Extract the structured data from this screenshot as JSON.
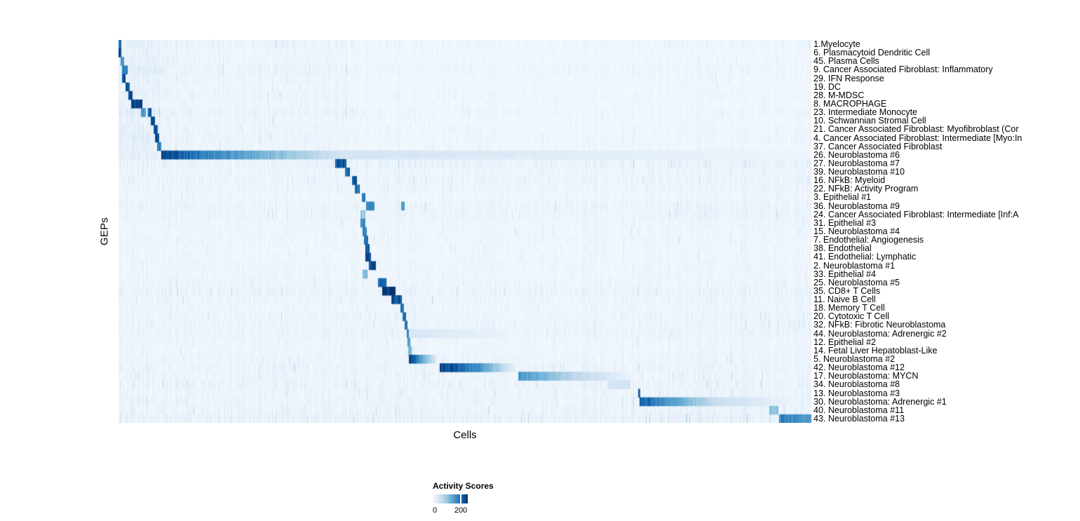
{
  "chart_data": {
    "type": "heatmap",
    "title": "",
    "xlabel": "Cells",
    "ylabel": "GEPs",
    "grid": false,
    "legend": {
      "title": "Activity Scores",
      "position": "bottom",
      "ticks": [
        {
          "label": "0",
          "frac": 0.0
        },
        {
          "label": "200",
          "frac": 0.8
        }
      ],
      "value_max": 250
    },
    "colors": {
      "low": "#f7fbff",
      "mid": "#6baed6",
      "high": "#08306b",
      "background": "#f3f8fc",
      "colormap": "Blues white-to-dark-navy"
    },
    "rows": [
      "1.Myelocyte",
      "6. Plasmacytoid Dendritic Cell",
      "45. Plasma Cells",
      "9. Cancer Associated Fibroblast: Inflammatory",
      "29. IFN Response",
      "19. DC",
      "28. M-MDSC",
      "8. MACROPHAGE",
      "23. Intermediate Monocyte",
      "10. Schwannian Stromal Cell",
      "21. Cancer Associated Fibroblast: Myofibroblast (Cor",
      "4. Cancer Associated Fibroblast: Intermediate [Myo:In",
      "37. Cancer Associated Fibroblast",
      "26. Neuroblastoma #6",
      "27. Neuroblastoma #7",
      "39. Neuroblastoma #10",
      "16. NFkB: Myeloid",
      "22. NFkB: Activity Program",
      "3. Epithelial #1",
      "36. Neuroblastoma #9",
      "24. Cancer Associated Fibroblast: Intermediate [Inf:A",
      "31. Epithelial #3",
      "15. Neuroblastoma #4",
      "7. Endothelial: Angiogenesis",
      "38. Endothelial",
      "41. Endothelial: Lymphatic",
      "2. Neuroblastoma #1",
      "33. Epithelial #4",
      "25. Neuroblastoma #5",
      "35. CD8+ T Cells",
      "11. Naive B Cell",
      "18. Memory T Cell",
      "20. Cytotoxic T Cell",
      "32. NFkB: Fibrotic Neuroblastoma",
      "44. Neuroblastoma: Adrenergic #2",
      "12. Epithelial #2",
      "14. Fetal Liver Hepatoblast-Like",
      "5. Neuroblastoma #2",
      "42. Neuroblastoma #12",
      "17. Neuroblastoma: MYCN",
      "34. Neuroblastoma #8",
      "13. Neuroblastoma #3",
      "30. Neuroblastoma: Adrenergic #1",
      "40. Neuroblastoma #11",
      "43. Neuroblastoma #13"
    ],
    "high_activity_blocks": [
      {
        "row": 0,
        "x0": 0.0,
        "x1": 0.004,
        "v0": 200,
        "v1": 200
      },
      {
        "row": 1,
        "x0": 0.0,
        "x1": 0.004,
        "v0": 235,
        "v1": 235
      },
      {
        "row": 2,
        "x0": 0.004,
        "x1": 0.008,
        "v0": 170,
        "v1": 170
      },
      {
        "row": 3,
        "x0": 0.006,
        "x1": 0.013,
        "v0": 185,
        "v1": 185
      },
      {
        "row": 4,
        "x0": 0.006,
        "x1": 0.01,
        "v0": 225,
        "v1": 225
      },
      {
        "row": 5,
        "x0": 0.011,
        "x1": 0.016,
        "v0": 220,
        "v1": 220
      },
      {
        "row": 6,
        "x0": 0.015,
        "x1": 0.02,
        "v0": 230,
        "v1": 230
      },
      {
        "row": 7,
        "x0": 0.019,
        "x1": 0.034,
        "v0": 245,
        "v1": 245
      },
      {
        "row": 8,
        "x0": 0.033,
        "x1": 0.039,
        "v0": 150,
        "v1": 150
      },
      {
        "row": 8,
        "x0": 0.043,
        "x1": 0.047,
        "v0": 210,
        "v1": 210
      },
      {
        "row": 9,
        "x0": 0.047,
        "x1": 0.052,
        "v0": 220,
        "v1": 220
      },
      {
        "row": 10,
        "x0": 0.051,
        "x1": 0.056,
        "v0": 215,
        "v1": 215
      },
      {
        "row": 11,
        "x0": 0.053,
        "x1": 0.058,
        "v0": 230,
        "v1": 230
      },
      {
        "row": 12,
        "x0": 0.056,
        "x1": 0.061,
        "v0": 180,
        "v1": 180
      },
      {
        "row": 13,
        "x0": 0.062,
        "x1": 0.105,
        "v0": 245,
        "v1": 195
      },
      {
        "row": 13,
        "x0": 0.105,
        "x1": 0.32,
        "v0": 195,
        "v1": 45
      },
      {
        "row": 13,
        "x0": 0.32,
        "x1": 1.0,
        "v0": 45,
        "v1": 12
      },
      {
        "row": 14,
        "x0": 0.313,
        "x1": 0.328,
        "v0": 215,
        "v1": 215
      },
      {
        "row": 15,
        "x0": 0.327,
        "x1": 0.334,
        "v0": 195,
        "v1": 195
      },
      {
        "row": 16,
        "x0": 0.338,
        "x1": 0.344,
        "v0": 215,
        "v1": 215
      },
      {
        "row": 17,
        "x0": 0.342,
        "x1": 0.348,
        "v0": 200,
        "v1": 200
      },
      {
        "row": 18,
        "x0": 0.352,
        "x1": 0.356,
        "v0": 185,
        "v1": 185
      },
      {
        "row": 19,
        "x0": 0.358,
        "x1": 0.369,
        "v0": 170,
        "v1": 170
      },
      {
        "row": 19,
        "x0": 0.408,
        "x1": 0.412,
        "v0": 160,
        "v1": 160
      },
      {
        "row": 20,
        "x0": 0.35,
        "x1": 0.356,
        "v0": 100,
        "v1": 100
      },
      {
        "row": 21,
        "x0": 0.35,
        "x1": 0.356,
        "v0": 175,
        "v1": 175
      },
      {
        "row": 22,
        "x0": 0.353,
        "x1": 0.358,
        "v0": 185,
        "v1": 185
      },
      {
        "row": 23,
        "x0": 0.355,
        "x1": 0.36,
        "v0": 200,
        "v1": 200
      },
      {
        "row": 24,
        "x0": 0.357,
        "x1": 0.362,
        "v0": 215,
        "v1": 215
      },
      {
        "row": 25,
        "x0": 0.357,
        "x1": 0.364,
        "v0": 225,
        "v1": 225
      },
      {
        "row": 26,
        "x0": 0.362,
        "x1": 0.371,
        "v0": 235,
        "v1": 235
      },
      {
        "row": 27,
        "x0": 0.353,
        "x1": 0.359,
        "v0": 120,
        "v1": 120
      },
      {
        "row": 28,
        "x0": 0.375,
        "x1": 0.386,
        "v0": 210,
        "v1": 210
      },
      {
        "row": 29,
        "x0": 0.381,
        "x1": 0.399,
        "v0": 240,
        "v1": 240
      },
      {
        "row": 30,
        "x0": 0.394,
        "x1": 0.408,
        "v0": 225,
        "v1": 225
      },
      {
        "row": 31,
        "x0": 0.407,
        "x1": 0.411,
        "v0": 190,
        "v1": 190
      },
      {
        "row": 32,
        "x0": 0.41,
        "x1": 0.414,
        "v0": 195,
        "v1": 195
      },
      {
        "row": 33,
        "x0": 0.413,
        "x1": 0.417,
        "v0": 195,
        "v1": 195
      },
      {
        "row": 34,
        "x0": 0.416,
        "x1": 0.42,
        "v0": 180,
        "v1": 180
      },
      {
        "row": 34,
        "x0": 0.42,
        "x1": 0.56,
        "v0": 40,
        "v1": 18
      },
      {
        "row": 35,
        "x0": 0.418,
        "x1": 0.421,
        "v0": 150,
        "v1": 150
      },
      {
        "row": 36,
        "x0": 0.419,
        "x1": 0.423,
        "v0": 120,
        "v1": 120
      },
      {
        "row": 37,
        "x0": 0.42,
        "x1": 0.458,
        "v0": 230,
        "v1": 35
      },
      {
        "row": 38,
        "x0": 0.464,
        "x1": 0.52,
        "v0": 245,
        "v1": 160
      },
      {
        "row": 38,
        "x0": 0.52,
        "x1": 0.573,
        "v0": 160,
        "v1": 20
      },
      {
        "row": 39,
        "x0": 0.577,
        "x1": 0.66,
        "v0": 155,
        "v1": 70
      },
      {
        "row": 39,
        "x0": 0.66,
        "x1": 0.745,
        "v0": 70,
        "v1": 12
      },
      {
        "row": 40,
        "x0": 0.707,
        "x1": 0.738,
        "v0": 45,
        "v1": 45
      },
      {
        "row": 41,
        "x0": 0.75,
        "x1": 0.753,
        "v0": 215,
        "v1": 215
      },
      {
        "row": 42,
        "x0": 0.753,
        "x1": 0.86,
        "v0": 210,
        "v1": 60
      },
      {
        "row": 42,
        "x0": 0.86,
        "x1": 0.978,
        "v0": 60,
        "v1": 12
      },
      {
        "row": 43,
        "x0": 0.94,
        "x1": 0.952,
        "v0": 110,
        "v1": 110
      },
      {
        "row": 44,
        "x0": 0.954,
        "x1": 1.0,
        "v0": 180,
        "v1": 150
      }
    ],
    "row_noise": [
      0.55,
      0.35,
      0.4,
      0.6,
      0.45,
      0.35,
      0.5,
      0.35,
      0.6,
      0.4,
      0.5,
      0.55,
      0.45,
      0.5,
      0.65,
      0.45,
      0.5,
      0.4,
      0.3,
      0.55,
      0.5,
      0.35,
      0.3,
      0.35,
      0.3,
      0.3,
      0.35,
      0.3,
      0.4,
      0.6,
      0.45,
      0.35,
      0.45,
      0.5,
      0.5,
      0.35,
      0.35,
      0.45,
      0.55,
      0.5,
      0.6,
      0.5,
      0.55,
      0.6,
      0.8
    ]
  }
}
